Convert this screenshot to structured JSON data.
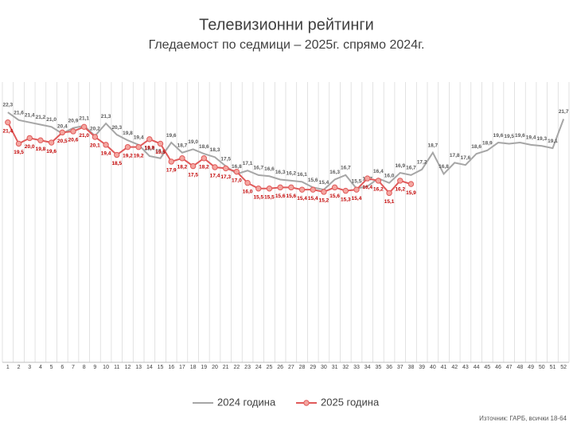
{
  "chart_data": {
    "type": "line",
    "title": "Телевизионни рейтинги",
    "subtitle": "Гледаемост по седмици – 2025г. спрямо 2024г.",
    "source": "Източник: ГАРБ, всички 18-64",
    "categories": [
      "1",
      "2",
      "3",
      "4",
      "5",
      "6",
      "7",
      "8",
      "9",
      "10",
      "11",
      "12",
      "13",
      "14",
      "15",
      "16",
      "17",
      "18",
      "19",
      "20",
      "21",
      "22",
      "23",
      "24",
      "25",
      "26",
      "27",
      "28",
      "29",
      "30",
      "31",
      "32",
      "33",
      "34",
      "35",
      "36",
      "37",
      "38",
      "39",
      "40",
      "41",
      "42",
      "43",
      "44",
      "45",
      "46",
      "47",
      "48",
      "49",
      "50",
      "51",
      "52"
    ],
    "ylim": [
      0,
      25
    ],
    "grid": true,
    "legend": "bottom",
    "series": [
      {
        "name": "2024 година",
        "color": "#a6a6a6",
        "label_color": "#595959",
        "values": [
          22.3,
          21.6,
          21.4,
          21.2,
          21.0,
          20.4,
          20.9,
          21.1,
          20.2,
          21.3,
          20.3,
          19.8,
          19.4,
          18.4,
          18.2,
          19.6,
          18.7,
          19.0,
          18.6,
          18.3,
          17.5,
          16.8,
          17.1,
          16.7,
          16.6,
          16.3,
          16.2,
          16.1,
          15.6,
          15.4,
          16.3,
          16.7,
          15.5,
          15.7,
          16.4,
          16.0,
          16.9,
          16.7,
          17.2,
          18.7,
          16.8,
          17.8,
          17.6,
          18.6,
          18.9,
          19.6,
          19.5,
          19.6,
          19.4,
          19.3,
          19.1,
          21.7
        ],
        "value_labels": [
          "22,3",
          "21,6",
          "21,4",
          "21,2",
          "21,0",
          "20,4",
          "20,9",
          "21,1",
          "20,2",
          "21,3",
          "20,3",
          "19,8",
          "19,4",
          "18,4",
          "18,2",
          "19,6",
          "18,7",
          "19,0",
          "18,6",
          "18,3",
          "17,5",
          "16,8",
          "17,1",
          "16,7",
          "16,6",
          "16,3",
          "16,2",
          "16,1",
          "15,6",
          "15,4",
          "16,3",
          "16,7",
          "15,5",
          "15,7",
          "16,4",
          "16,0",
          "16,9",
          "16,7",
          "17,2",
          "18,7",
          "16,8",
          "17,8",
          "17,6",
          "18,6",
          "18,9",
          "19,6",
          "19,5",
          "19,6",
          "19,4",
          "19,3",
          "19,1",
          "21,7"
        ]
      },
      {
        "name": "2025 година",
        "color": "#e05a5a",
        "marker_fill": "#f4a6a0",
        "label_color": "#c00000",
        "values": [
          21.4,
          19.5,
          20.0,
          19.8,
          19.6,
          20.5,
          20.6,
          21.0,
          20.1,
          19.4,
          18.5,
          19.2,
          19.2,
          19.9,
          19.5,
          17.9,
          18.2,
          17.5,
          18.2,
          17.4,
          17.3,
          17.0,
          16.0,
          15.5,
          15.5,
          15.6,
          15.6,
          15.4,
          15.4,
          15.2,
          15.6,
          15.3,
          15.4,
          16.4,
          16.2,
          15.1,
          16.2,
          15.9,
          null,
          null,
          null,
          null,
          null,
          null,
          null,
          null,
          null,
          null,
          null,
          null,
          null,
          null
        ],
        "value_labels": [
          "21,4",
          "19,5",
          "20,0",
          "19,8",
          "19,6",
          "20,5",
          "20,6",
          "21,0",
          "20,1",
          "19,4",
          "18,5",
          "19,2",
          "19,2",
          "19,9",
          "19,5",
          "17,9",
          "18,2",
          "17,5",
          "18,2",
          "17,4",
          "17,3",
          "17,0",
          "16,0",
          "15,5",
          "15,5",
          "15,6",
          "15,6",
          "15,4",
          "15,4",
          "15,2",
          "15,6",
          "15,3",
          "15,4",
          "16,4",
          "16,2",
          "15,1",
          "16,2",
          "15,9",
          null,
          null,
          null,
          null,
          null,
          null,
          null,
          null,
          null,
          null,
          null,
          null,
          null,
          null
        ]
      }
    ]
  }
}
